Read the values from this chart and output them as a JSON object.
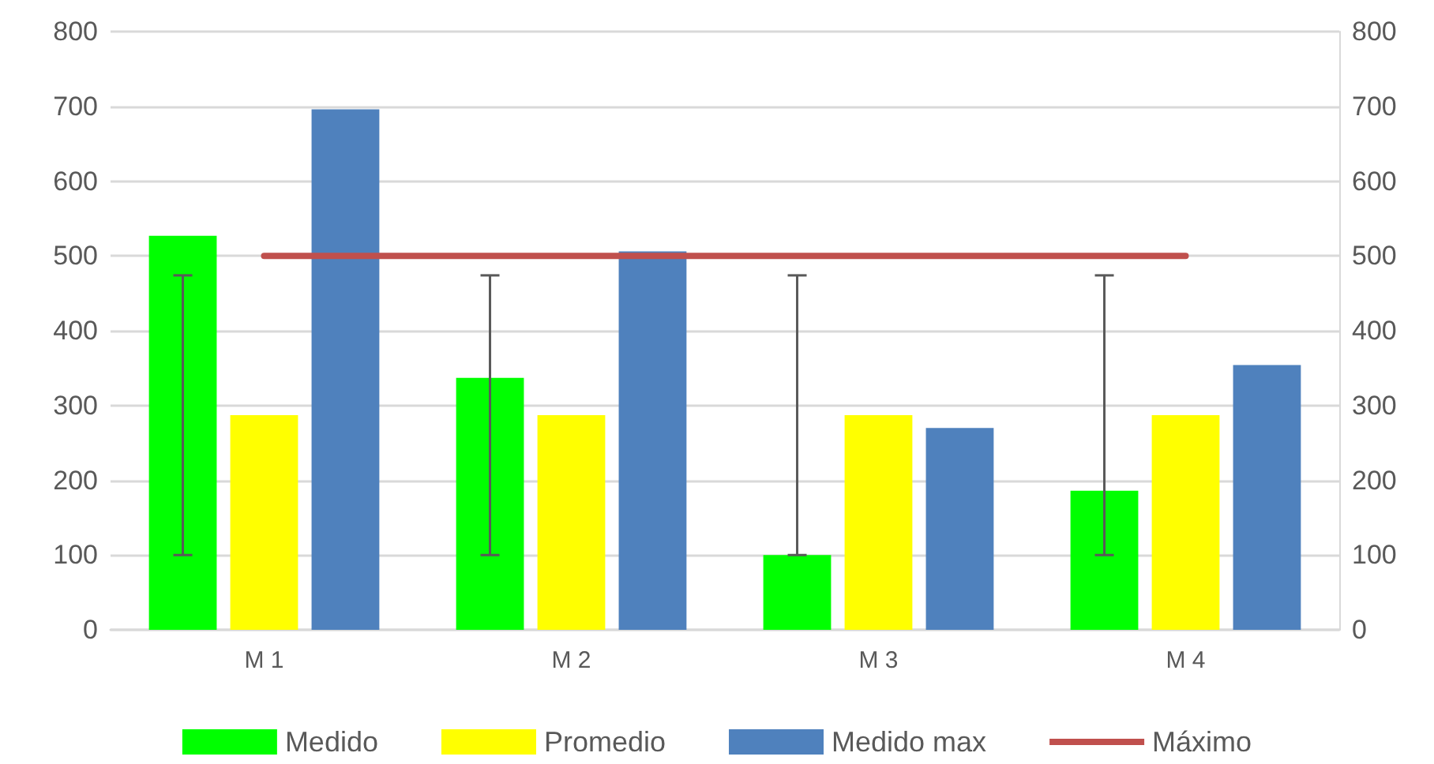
{
  "chart_data": {
    "type": "bar",
    "categories": [
      "M 1",
      "M 2",
      "M 3",
      "M 4"
    ],
    "series": [
      {
        "name": "Medido",
        "color": "#00ff00",
        "values": [
          527,
          337,
          100,
          186
        ],
        "errors": [
          [
            100,
            474
          ],
          [
            100,
            474
          ],
          [
            100,
            474
          ],
          [
            100,
            474
          ]
        ]
      },
      {
        "name": "Promedio",
        "color": "#ffff00",
        "values": [
          287,
          287,
          287,
          287
        ]
      },
      {
        "name": "Medido max",
        "color": "#4f81bd",
        "values": [
          696,
          506,
          270,
          354
        ]
      },
      {
        "name": "Máximo",
        "type": "line",
        "axis": "y2",
        "color": "#c0504d",
        "values": [
          500,
          500,
          500,
          500
        ]
      }
    ],
    "ylim": [
      0,
      800
    ],
    "yticks": [
      0,
      100,
      200,
      300,
      400,
      500,
      600,
      700,
      800
    ],
    "y2lim": [
      0,
      800
    ],
    "y2ticks": [
      0,
      100,
      200,
      300,
      400,
      500,
      600,
      700,
      800
    ],
    "grid": "y",
    "legend": "bottom",
    "marker": "none"
  }
}
